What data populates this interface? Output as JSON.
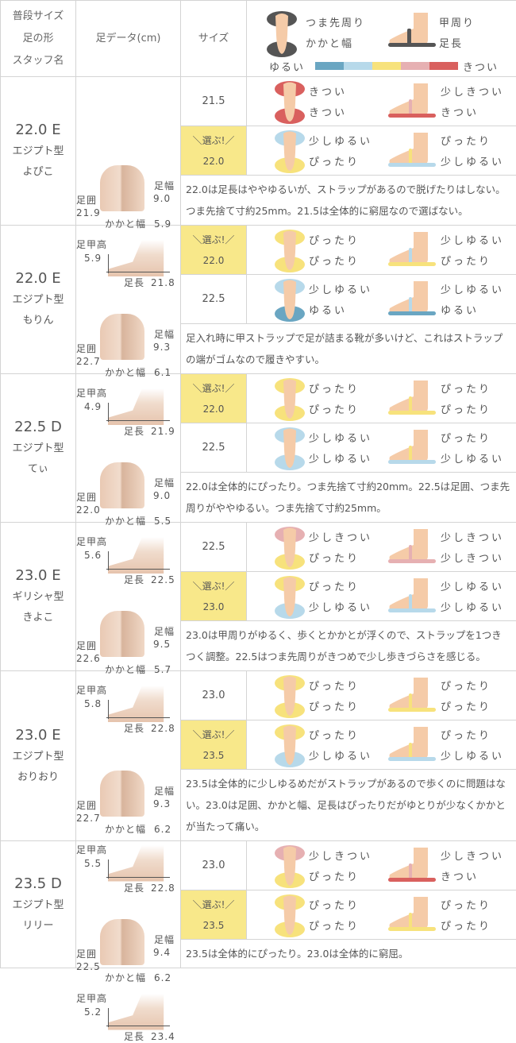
{
  "colors": {
    "ゆるい": "#6aa6c2",
    "少しゆるい": "#b7d9ea",
    "ぴったり": "#f7e27c",
    "少しきつい": "#e6b0b2",
    "きつい": "#d9605e",
    "icon_dark": "#555555",
    "skin": "#f5cba8"
  },
  "header": {
    "col1": [
      "普段サイズ",
      "足の形",
      "スタッフ名"
    ],
    "col2": "足データ(cm)",
    "col3": "サイズ",
    "legend": {
      "toe": "つま先周り",
      "heel": "かかと幅",
      "instep": "甲周り",
      "length": "足長",
      "loose": "ゆるい",
      "tight": "きつい",
      "scale": [
        "ゆるい",
        "少しゆるい",
        "ぴったり",
        "少しきつい",
        "きつい"
      ]
    }
  },
  "labels": {
    "girth": "足囲",
    "width": "足幅",
    "heel": "かかと幅",
    "instep": "足甲高",
    "length": "足長",
    "pick": "＼選ぶ!／"
  },
  "staff": [
    {
      "size": "22.0 E",
      "shape": "エジプト型",
      "name": "よぴこ",
      "girth": "21.9",
      "width": "9.0",
      "heel": "5.9",
      "instep": "5.9",
      "length": "21.8",
      "tries": [
        {
          "size": "21.5",
          "pick": false,
          "toe": "きつい",
          "heel": "きつい",
          "instep": "少しきつい",
          "length": "きつい"
        },
        {
          "size": "22.0",
          "pick": true,
          "toe": "少しゆるい",
          "heel": "ぴったり",
          "instep": "ぴったり",
          "length": "少しゆるい"
        }
      ],
      "comment": "22.0は足長はややゆるいが、ストラップがあるので脱げたりはしない。つま先捨て寸約25mm。21.5は全体的に窮屈なので選ばない。"
    },
    {
      "size": "22.0 E",
      "shape": "エジプト型",
      "name": "もりん",
      "girth": "22.7",
      "width": "9.3",
      "heel": "6.1",
      "instep": "4.9",
      "length": "21.9",
      "tries": [
        {
          "size": "22.0",
          "pick": true,
          "toe": "ぴったり",
          "heel": "ぴったり",
          "instep": "少しゆるい",
          "length": "ぴったり"
        },
        {
          "size": "22.5",
          "pick": false,
          "toe": "少しゆるい",
          "heel": "ゆるい",
          "instep": "少しゆるい",
          "length": "ゆるい"
        }
      ],
      "comment": "足入れ時に甲ストラップで足が詰まる靴が多いけど、これはストラップの端がゴムなので履きやすい。"
    },
    {
      "size": "22.5 D",
      "shape": "エジプト型",
      "name": "てぃ",
      "girth": "22.0",
      "width": "9.0",
      "heel": "5.5",
      "instep": "5.6",
      "length": "22.5",
      "tries": [
        {
          "size": "22.0",
          "pick": true,
          "toe": "ぴったり",
          "heel": "ぴったり",
          "instep": "ぴったり",
          "length": "ぴったり"
        },
        {
          "size": "22.5",
          "pick": false,
          "toe": "少しゆるい",
          "heel": "少しゆるい",
          "instep": "ぴったり",
          "length": "少しゆるい"
        }
      ],
      "comment": "22.0は全体的にぴったり。つま先捨て寸約20mm。22.5は足囲、つま先周りがややゆるい。つま先捨て寸約25mm。"
    },
    {
      "size": "23.0 E",
      "shape": "ギリシャ型",
      "name": "きよこ",
      "girth": "22.6",
      "width": "9.5",
      "heel": "5.7",
      "instep": "5.8",
      "length": "22.8",
      "tries": [
        {
          "size": "22.5",
          "pick": false,
          "toe": "少しきつい",
          "heel": "ぴったり",
          "instep": "少しきつい",
          "length": "少しきつい"
        },
        {
          "size": "23.0",
          "pick": true,
          "toe": "ぴったり",
          "heel": "少しゆるい",
          "instep": "少しゆるい",
          "length": "少しゆるい"
        }
      ],
      "comment": "23.0は甲周りがゆるく、歩くとかかとが浮くので、ストラップを1つきつく調整。22.5はつま先周りがきつめで少し歩きづらさを感じる。"
    },
    {
      "size": "23.0 E",
      "shape": "エジプト型",
      "name": "おりおり",
      "girth": "22.7",
      "width": "9.3",
      "heel": "6.2",
      "instep": "5.5",
      "length": "22.8",
      "tries": [
        {
          "size": "23.0",
          "pick": false,
          "toe": "ぴったり",
          "heel": "ぴったり",
          "instep": "ぴったり",
          "length": "ぴったり"
        },
        {
          "size": "23.5",
          "pick": true,
          "toe": "ぴったり",
          "heel": "少しゆるい",
          "instep": "ぴったり",
          "length": "少しゆるい"
        }
      ],
      "comment": "23.5は全体的に少しゆるめだがストラップがあるので歩くのに問題はない。23.0は足囲、かかと幅、足長はぴったりだがゆとりが少なくかかとが当たって痛い。"
    },
    {
      "size": "23.5 D",
      "shape": "エジプト型",
      "name": "リリー",
      "girth": "22.5",
      "width": "9.4",
      "heel": "6.2",
      "instep": "5.2",
      "length": "23.4",
      "tries": [
        {
          "size": "23.0",
          "pick": false,
          "toe": "少しきつい",
          "heel": "ぴったり",
          "instep": "少しきつい",
          "length": "きつい"
        },
        {
          "size": "23.5",
          "pick": true,
          "toe": "ぴったり",
          "heel": "ぴったり",
          "instep": "ぴったり",
          "length": "ぴったり"
        }
      ],
      "comment": "23.5は全体的にぴったり。23.0は全体的に窮屈。"
    }
  ]
}
